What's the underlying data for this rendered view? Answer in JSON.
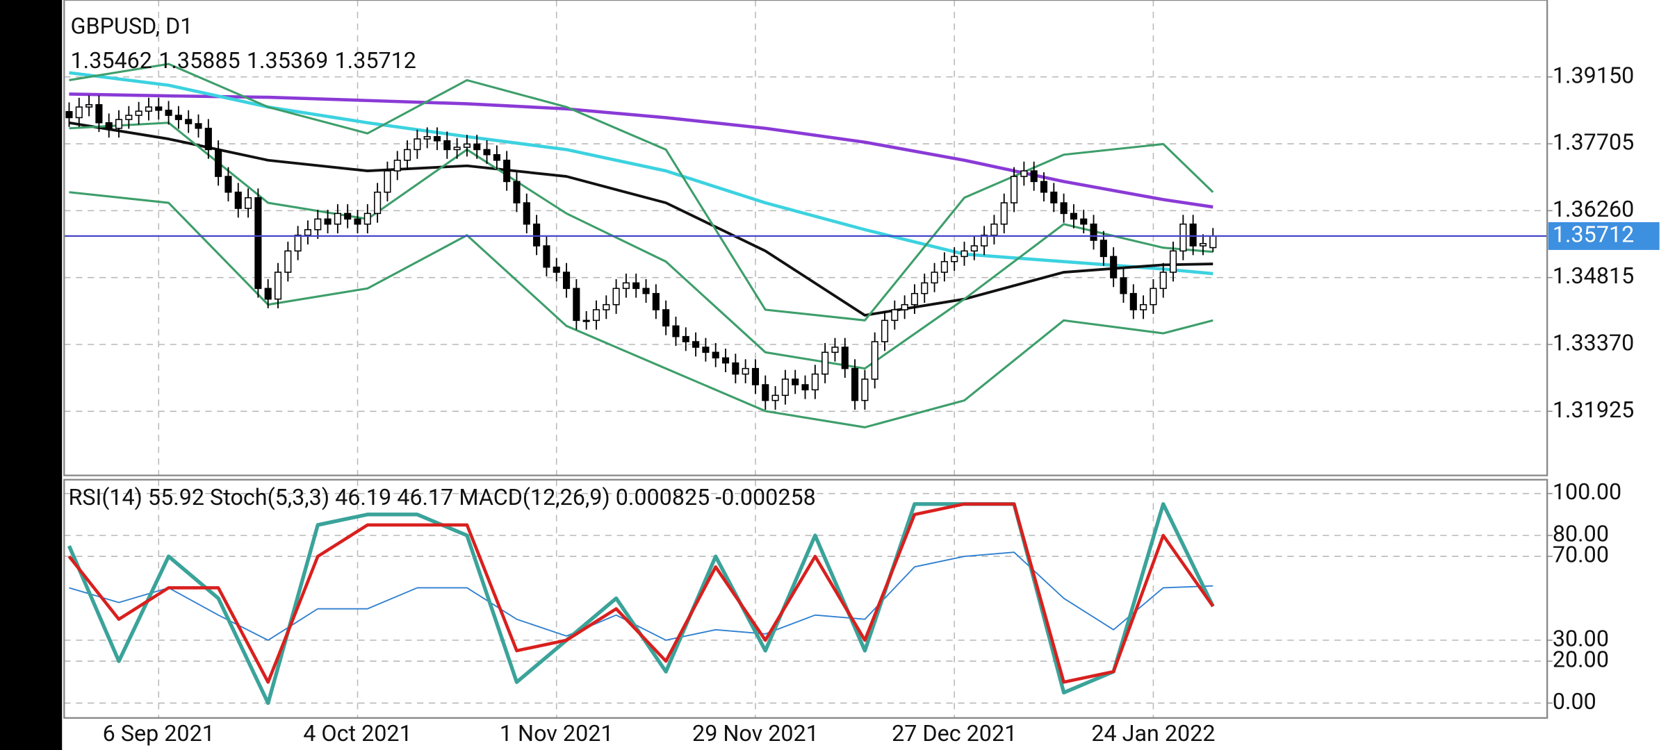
{
  "chart_data": [
    {
      "type": "candlestick",
      "title": "GBPUSD, D1",
      "open": [
        1.384,
        1.3827,
        1.385,
        1.3855,
        1.3816,
        1.3804,
        1.3823,
        1.3832,
        1.3841,
        1.385,
        1.3843,
        1.3832,
        1.3823,
        1.3814,
        1.3804,
        1.3758,
        1.37,
        1.3666,
        1.3631,
        1.3654,
        1.3458,
        1.3435,
        1.3493,
        1.3539,
        1.3573,
        1.3585,
        1.3608,
        1.3597,
        1.362,
        1.3608,
        1.3597,
        1.362,
        1.3666,
        1.3712,
        1.3735,
        1.3758,
        1.3781,
        1.3786,
        1.3777,
        1.3758,
        1.3763,
        1.377,
        1.3758,
        1.3747,
        1.3735,
        1.3689,
        1.3643,
        1.3597,
        1.355,
        1.3504,
        1.3493,
        1.3458,
        1.3389,
        1.3389,
        1.3412,
        1.3423,
        1.3458,
        1.347,
        1.3458,
        1.3447,
        1.3412,
        1.3377,
        1.3354,
        1.3343,
        1.3331,
        1.332,
        1.3308,
        1.3297,
        1.3273,
        1.3285,
        1.325,
        1.3216,
        1.3227,
        1.3262,
        1.325,
        1.3239,
        1.3273,
        1.332,
        1.3331,
        1.3285,
        1.3216,
        1.3262,
        1.3343,
        1.3389,
        1.3412,
        1.3423,
        1.3447,
        1.347,
        1.3493,
        1.3516,
        1.3527,
        1.3539,
        1.355,
        1.3573,
        1.3597,
        1.3643,
        1.37,
        1.3712,
        1.3689,
        1.3666,
        1.3643,
        1.362,
        1.3608,
        1.3597,
        1.3562,
        1.3527,
        1.3481,
        1.3447,
        1.3412,
        1.3423,
        1.3458,
        1.3493,
        1.3539,
        1.3597,
        1.355,
        1.35462
      ],
      "high": [
        1.386,
        1.387,
        1.3875,
        1.3875,
        1.3836,
        1.3843,
        1.3852,
        1.3861,
        1.387,
        1.387,
        1.3863,
        1.3852,
        1.3843,
        1.3834,
        1.3824,
        1.3778,
        1.372,
        1.3686,
        1.3674,
        1.3674,
        1.3478,
        1.3513,
        1.3559,
        1.3593,
        1.3605,
        1.3628,
        1.3628,
        1.364,
        1.364,
        1.3628,
        1.364,
        1.3686,
        1.3732,
        1.3755,
        1.3778,
        1.3801,
        1.3806,
        1.3806,
        1.3797,
        1.3783,
        1.379,
        1.379,
        1.3778,
        1.3767,
        1.3755,
        1.3709,
        1.3663,
        1.3617,
        1.357,
        1.3524,
        1.3513,
        1.3478,
        1.3409,
        1.3432,
        1.3443,
        1.3478,
        1.349,
        1.349,
        1.3478,
        1.3467,
        1.3432,
        1.3397,
        1.3374,
        1.3363,
        1.3351,
        1.334,
        1.3328,
        1.3317,
        1.3305,
        1.3305,
        1.327,
        1.3247,
        1.3282,
        1.3282,
        1.327,
        1.3293,
        1.334,
        1.3351,
        1.3351,
        1.3305,
        1.3282,
        1.3363,
        1.3409,
        1.3432,
        1.3443,
        1.3467,
        1.349,
        1.3513,
        1.3536,
        1.3547,
        1.3559,
        1.357,
        1.3593,
        1.3617,
        1.3663,
        1.372,
        1.3732,
        1.3732,
        1.3709,
        1.3686,
        1.3663,
        1.364,
        1.3628,
        1.3617,
        1.3582,
        1.3547,
        1.3501,
        1.3467,
        1.3443,
        1.3478,
        1.3513,
        1.3559,
        1.3617,
        1.3617,
        1.3575,
        1.35885
      ],
      "low": [
        1.3807,
        1.3807,
        1.383,
        1.3796,
        1.3784,
        1.3784,
        1.3803,
        1.3812,
        1.3821,
        1.3823,
        1.3812,
        1.3803,
        1.3794,
        1.3784,
        1.3738,
        1.368,
        1.3646,
        1.3611,
        1.3611,
        1.3438,
        1.3415,
        1.3415,
        1.3473,
        1.3519,
        1.3553,
        1.3565,
        1.3577,
        1.3577,
        1.3588,
        1.3577,
        1.3577,
        1.36,
        1.3646,
        1.3692,
        1.3715,
        1.3738,
        1.3761,
        1.3757,
        1.3738,
        1.3738,
        1.3743,
        1.3738,
        1.3727,
        1.3715,
        1.3669,
        1.3623,
        1.3577,
        1.353,
        1.3484,
        1.3473,
        1.3438,
        1.3369,
        1.3369,
        1.3369,
        1.3392,
        1.3403,
        1.3438,
        1.3438,
        1.3427,
        1.3392,
        1.3357,
        1.3334,
        1.3323,
        1.3311,
        1.33,
        1.3288,
        1.3277,
        1.3253,
        1.3253,
        1.323,
        1.3196,
        1.3196,
        1.3207,
        1.323,
        1.3219,
        1.3219,
        1.3253,
        1.33,
        1.3265,
        1.3196,
        1.3196,
        1.3242,
        1.3323,
        1.3369,
        1.3392,
        1.3403,
        1.3427,
        1.345,
        1.3473,
        1.3496,
        1.3507,
        1.3519,
        1.353,
        1.3553,
        1.3577,
        1.3623,
        1.368,
        1.3669,
        1.3646,
        1.3623,
        1.36,
        1.3588,
        1.3577,
        1.3542,
        1.3507,
        1.3461,
        1.3427,
        1.3392,
        1.3392,
        1.3403,
        1.3438,
        1.3473,
        1.3519,
        1.353,
        1.353,
        1.35369
      ],
      "close": [
        1.3827,
        1.385,
        1.3855,
        1.3816,
        1.3804,
        1.3823,
        1.3832,
        1.3841,
        1.385,
        1.3843,
        1.3832,
        1.3823,
        1.3814,
        1.3804,
        1.3758,
        1.37,
        1.3666,
        1.3631,
        1.3654,
        1.3458,
        1.3435,
        1.3493,
        1.3539,
        1.3573,
        1.3585,
        1.3608,
        1.3597,
        1.362,
        1.3608,
        1.3597,
        1.362,
        1.3666,
        1.3712,
        1.3735,
        1.3758,
        1.3781,
        1.3786,
        1.3777,
        1.3758,
        1.3763,
        1.377,
        1.3758,
        1.3747,
        1.3735,
        1.3689,
        1.3643,
        1.3597,
        1.355,
        1.3504,
        1.3493,
        1.3458,
        1.3389,
        1.3389,
        1.3412,
        1.3423,
        1.3458,
        1.347,
        1.3458,
        1.3447,
        1.3412,
        1.3377,
        1.3354,
        1.3343,
        1.3331,
        1.332,
        1.3308,
        1.3297,
        1.3273,
        1.3285,
        1.325,
        1.3216,
        1.3227,
        1.3262,
        1.325,
        1.3239,
        1.3273,
        1.332,
        1.3331,
        1.3285,
        1.3216,
        1.3262,
        1.3343,
        1.3389,
        1.3412,
        1.3423,
        1.3447,
        1.347,
        1.3493,
        1.3516,
        1.3527,
        1.3539,
        1.355,
        1.3573,
        1.3597,
        1.3643,
        1.37,
        1.3712,
        1.3689,
        1.3666,
        1.3643,
        1.362,
        1.3608,
        1.3597,
        1.3562,
        1.3527,
        1.3481,
        1.3447,
        1.3412,
        1.3423,
        1.3458,
        1.3493,
        1.3539,
        1.3597,
        1.355,
        1.3555,
        1.35712
      ],
      "up_color": "#ffffff",
      "down_color": "#000000",
      "price_line_color": "#4646c8",
      "price_label_color": "#3d8fe0",
      "xlim": [
        -0.5,
        148.6
      ],
      "ylim": [
        1.3054,
        1.40812
      ],
      "xticks": [
        {
          "value": 9,
          "label": "6 Sep 2021"
        },
        {
          "value": 29,
          "label": "4 Oct 2021"
        },
        {
          "value": 49,
          "label": "1 Nov 2021"
        },
        {
          "value": 69,
          "label": "29 Nov 2021"
        },
        {
          "value": 89,
          "label": "27 Dec 2021"
        },
        {
          "value": 109,
          "label": "24 Jan 2022"
        }
      ],
      "yticks": [
        {
          "value": 1.3915,
          "label": "1.39150"
        },
        {
          "value": 1.37705,
          "label": "1.37705"
        },
        {
          "value": 1.3626,
          "label": "1.36260"
        },
        {
          "value": 1.34815,
          "label": "1.34815"
        },
        {
          "value": 1.3337,
          "label": "1.33370"
        },
        {
          "value": 1.31925,
          "label": "1.31925"
        }
      ],
      "grid": true,
      "series": [
        {
          "color": "#8a3ad6",
          "line_width": 3,
          "x": [
            0,
            10,
            20,
            30,
            40,
            50,
            60,
            70,
            80,
            90,
            100,
            110,
            115
          ],
          "values": [
            1.3878,
            1.3874,
            1.3871,
            1.3864,
            1.3857,
            1.3846,
            1.3827,
            1.3804,
            1.3774,
            1.3735,
            1.3689,
            1.365,
            1.3634
          ]
        },
        {
          "color": "#3cd2e0",
          "line_width": 3,
          "x": [
            0,
            10,
            20,
            30,
            40,
            50,
            60,
            70,
            80,
            90,
            100,
            110,
            115
          ],
          "values": [
            1.3924,
            1.3897,
            1.385,
            1.3816,
            1.3786,
            1.3758,
            1.3712,
            1.3643,
            1.3585,
            1.3532,
            1.3516,
            1.35,
            1.349
          ]
        },
        {
          "color": "#111111",
          "line_width": 2.5,
          "x": [
            0,
            10,
            20,
            30,
            40,
            50,
            60,
            70,
            80,
            90,
            100,
            110,
            115
          ],
          "values": [
            1.3816,
            1.3781,
            1.3735,
            1.3712,
            1.3723,
            1.37,
            1.3643,
            1.3539,
            1.34,
            1.3435,
            1.3493,
            1.3509,
            1.3511
          ]
        },
        {
          "color": "#3d9e6a",
          "line_width": 2,
          "x": [
            0,
            10,
            20,
            30,
            40,
            50,
            60,
            70,
            80,
            90,
            100,
            110,
            115
          ],
          "values": [
            1.3908,
            1.3943,
            1.385,
            1.3793,
            1.3908,
            1.385,
            1.3758,
            1.3412,
            1.3389,
            1.3654,
            1.3747,
            1.377,
            1.3666
          ]
        },
        {
          "color": "#3d9e6a",
          "line_width": 2,
          "x": [
            0,
            10,
            20,
            30,
            40,
            50,
            60,
            70,
            80,
            90,
            100,
            110,
            115
          ],
          "values": [
            1.3666,
            1.3643,
            1.3423,
            1.3458,
            1.3573,
            1.3377,
            1.3285,
            1.3193,
            1.3158,
            1.3216,
            1.3389,
            1.3361,
            1.3389
          ]
        },
        {
          "color": "#3d9e6a",
          "line_width": 2,
          "x": [
            0,
            10,
            20,
            30,
            40,
            50,
            60,
            70,
            80,
            90,
            100,
            110,
            115
          ],
          "values": [
            1.3804,
            1.3816,
            1.3643,
            1.3608,
            1.3758,
            1.362,
            1.3516,
            1.332,
            1.3285,
            1.3435,
            1.3597,
            1.3546,
            1.3537
          ]
        }
      ]
    },
    {
      "type": "line",
      "title": "RSI(14) 55.92 Stoch(5,3,3) 46.19 46.17 MACD(12,26,9) 0.000825 -0.000258",
      "xlim": [
        -0.5,
        148.6
      ],
      "ylim": [
        -7.1,
        106.6
      ],
      "yticks": [
        {
          "value": 100,
          "label": "100.00"
        },
        {
          "value": 80,
          "label": "80.00"
        },
        {
          "value": 70,
          "label": "70.00"
        },
        {
          "value": 30,
          "label": "30.00"
        },
        {
          "value": 20,
          "label": "20.00"
        },
        {
          "value": 0,
          "label": "0.00"
        }
      ],
      "grid": true,
      "series": [
        {
          "color": "#2f7fd0",
          "line_width": 1.2,
          "x": [
            0,
            5,
            10,
            15,
            20,
            25,
            30,
            35,
            40,
            45,
            50,
            55,
            60,
            65,
            70,
            75,
            80,
            85,
            90,
            95,
            100,
            105,
            110,
            115
          ],
          "values": [
            55,
            48,
            55,
            42,
            30,
            45,
            45,
            55,
            55,
            40,
            32,
            42,
            30,
            35,
            33,
            42,
            40,
            65,
            70,
            72,
            50,
            35,
            55,
            55.92
          ]
        },
        {
          "color": "#3aa39a",
          "line_width": 3.5,
          "x": [
            0,
            5,
            10,
            15,
            20,
            25,
            30,
            35,
            40,
            45,
            50,
            55,
            60,
            65,
            70,
            75,
            80,
            85,
            90,
            95,
            100,
            105,
            110,
            115
          ],
          "values": [
            75,
            20,
            70,
            50,
            0,
            85,
            90,
            90,
            80,
            10,
            30,
            50,
            15,
            70,
            25,
            80,
            25,
            95,
            95,
            95,
            5,
            15,
            95,
            46.19
          ]
        },
        {
          "color": "#d8201e",
          "line_width": 3,
          "x": [
            0,
            5,
            10,
            15,
            20,
            25,
            30,
            35,
            40,
            45,
            50,
            55,
            60,
            65,
            70,
            75,
            80,
            85,
            90,
            95,
            100,
            105,
            110,
            115
          ],
          "values": [
            70,
            40,
            55,
            55,
            10,
            70,
            85,
            85,
            85,
            25,
            30,
            45,
            20,
            65,
            30,
            70,
            30,
            90,
            95,
            95,
            10,
            15,
            80,
            46.17
          ]
        }
      ]
    }
  ]
}
